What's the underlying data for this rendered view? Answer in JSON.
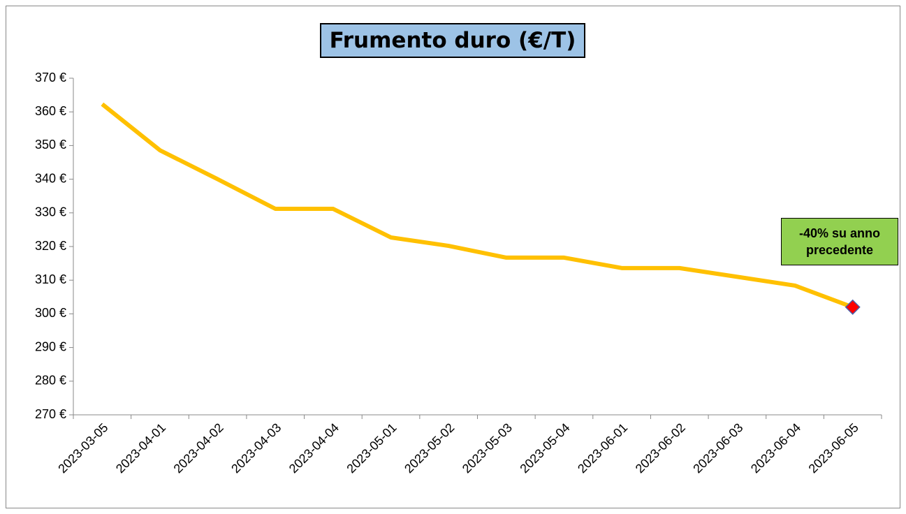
{
  "chart_data": {
    "type": "line",
    "title": "Frumento duro (€/T)",
    "categories": [
      "2023-03-05",
      "2023-04-01",
      "2023-04-02",
      "2023-04-03",
      "2023-04-04",
      "2023-05-01",
      "2023-05-02",
      "2023-05-03",
      "2023-05-04",
      "2023-06-01",
      "2023-06-02",
      "2023-06-03",
      "2023-06-04",
      "2023-06-05"
    ],
    "series": [
      {
        "name": "Frumento duro",
        "color": "#ffc000",
        "values": [
          362.3,
          348.6,
          340,
          331.2,
          331.2,
          322.7,
          320.2,
          316.7,
          316.7,
          313.6,
          313.6,
          311,
          308.4,
          302
        ]
      }
    ],
    "marker_color": "#ff0000",
    "annotation": "-40% su anno precedente",
    "ylim": [
      270,
      370
    ],
    "yticks": [
      {
        "value": 270,
        "label": "270 €"
      },
      {
        "value": 280,
        "label": "280 €"
      },
      {
        "value": 290,
        "label": "290 €"
      },
      {
        "value": 300,
        "label": "300 €"
      },
      {
        "value": 310,
        "label": "310 €"
      },
      {
        "value": 320,
        "label": "320 €"
      },
      {
        "value": 330,
        "label": "330 €"
      },
      {
        "value": 340,
        "label": "340 €"
      },
      {
        "value": 350,
        "label": "350 €"
      },
      {
        "value": 360,
        "label": "360 €"
      },
      {
        "value": 370,
        "label": "370 €"
      }
    ],
    "grid": false
  }
}
